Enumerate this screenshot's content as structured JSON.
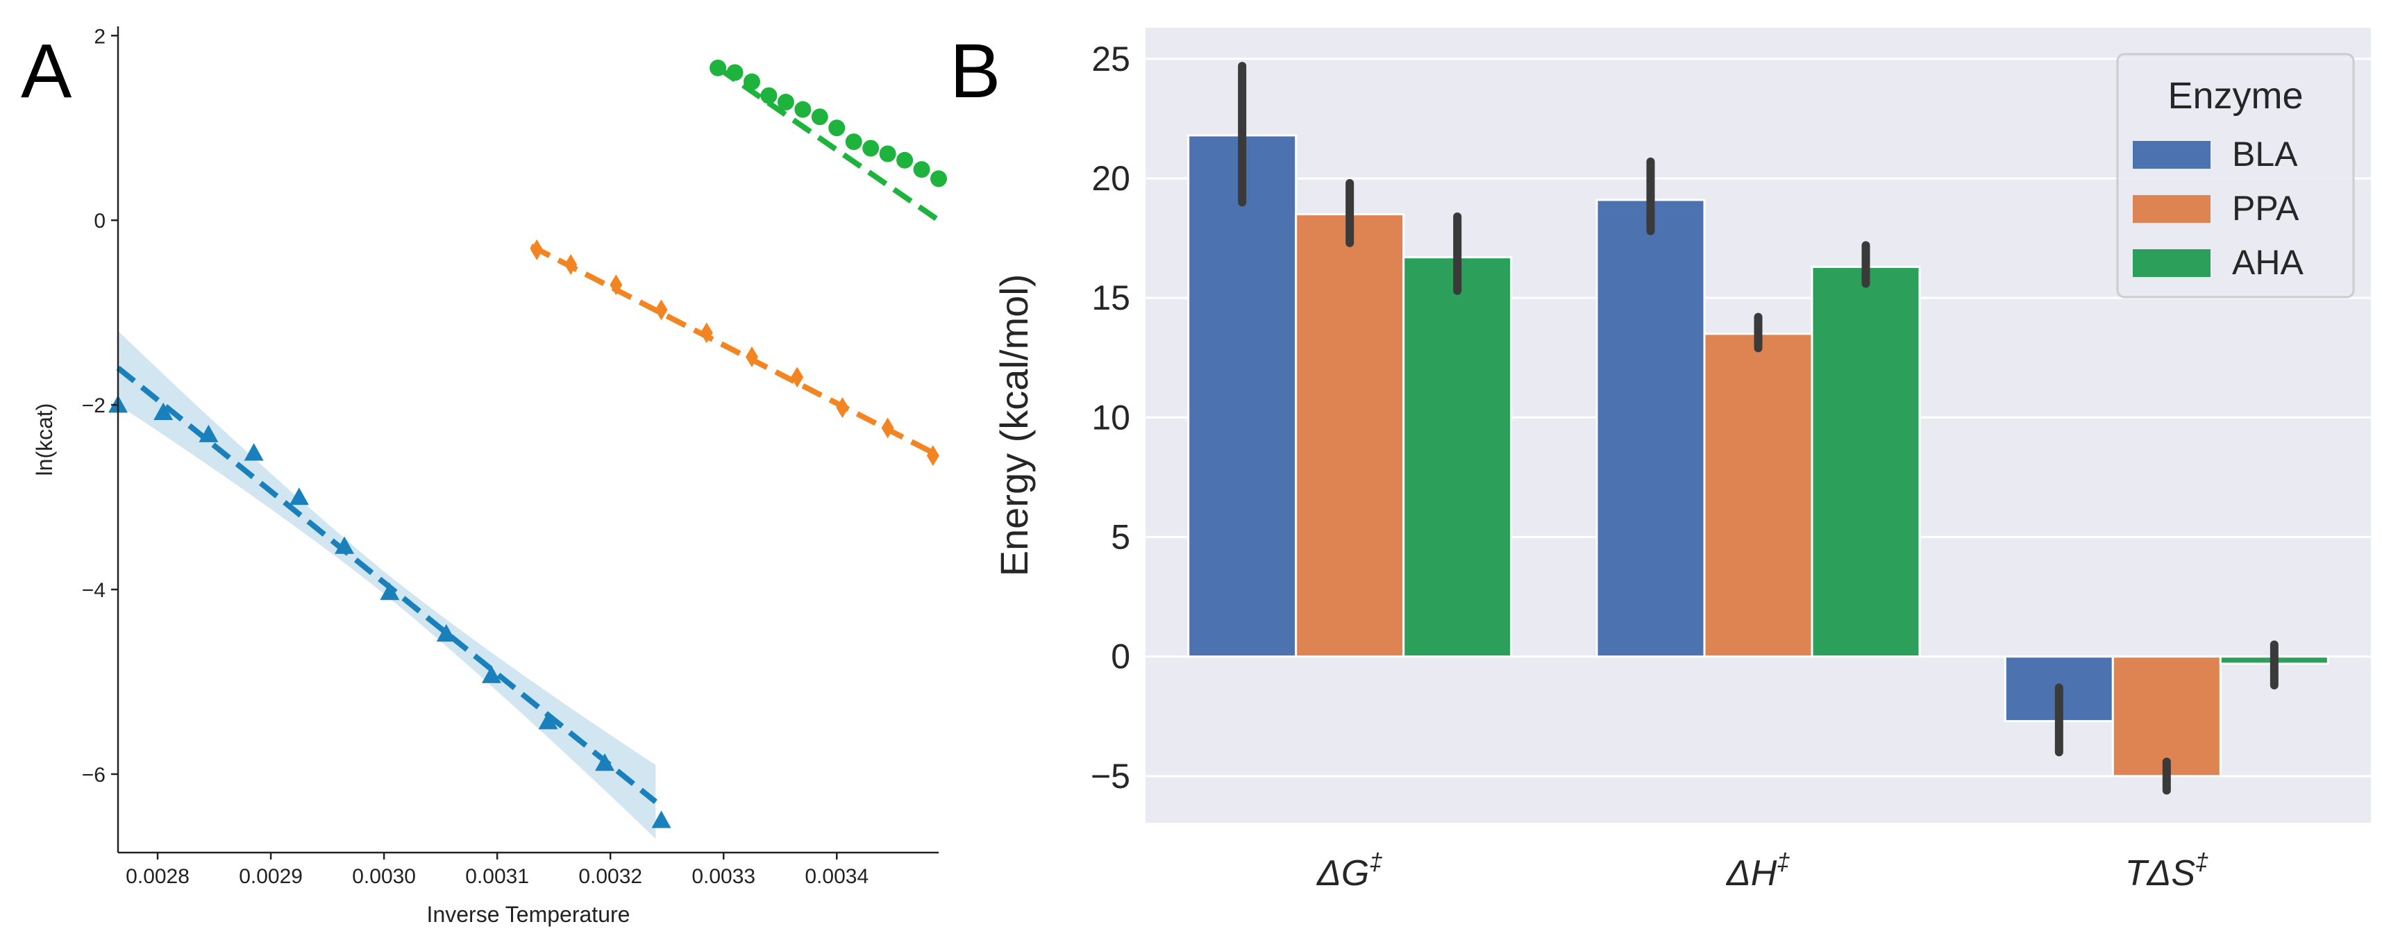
{
  "figure": {
    "panel_a_letter": "A",
    "panel_b_letter": "B"
  },
  "colors": {
    "blue_scatter": "#1a80bb",
    "orange_scatter": "#f28522",
    "green_scatter": "#1db33d",
    "BLA": "#4c72b0",
    "PPA": "#dd8452",
    "AHA": "#2ca05a",
    "panel_b_bg": "#eaeaf2",
    "error_bar": "#3a3a3a"
  },
  "chart_data": [
    {
      "type": "scatter",
      "panel": "A",
      "title": "",
      "xlabel": "Inverse Temperature",
      "ylabel": "ln(kcat)",
      "xlim": [
        0.002765,
        0.00349
      ],
      "ylim": [
        -6.85,
        2.1
      ],
      "xticks": [
        0.0028,
        0.0029,
        0.003,
        0.0031,
        0.0032,
        0.0033,
        0.0034
      ],
      "xtick_labels": [
        "0.0028",
        "0.0029",
        "0.0030",
        "0.0031",
        "0.0032",
        "0.0033",
        "0.0034"
      ],
      "yticks": [
        -6,
        -4,
        -2,
        0,
        2
      ],
      "ytick_labels": [
        "−6",
        "−4",
        "−2",
        "0",
        "2"
      ],
      "grid": false,
      "series": [
        {
          "name": "BLA",
          "marker": "triangle",
          "color": "#1a80bb",
          "x": [
            0.002765,
            0.002805,
            0.002845,
            0.002885,
            0.002925,
            0.002965,
            0.003005,
            0.003055,
            0.003095,
            0.003145,
            0.003195,
            0.003245
          ],
          "y": [
            -2.0,
            -2.08,
            -2.32,
            -2.52,
            -3.0,
            -3.53,
            -4.03,
            -4.48,
            -4.93,
            -5.43,
            -5.88,
            -6.5
          ],
          "fit": {
            "x": [
              0.002765,
              0.00324
            ],
            "y": [
              -1.6,
              -6.3
            ]
          },
          "confidence_band": true
        },
        {
          "name": "PPA",
          "marker": "diamond",
          "color": "#f28522",
          "x": [
            0.003135,
            0.003165,
            0.003205,
            0.003245,
            0.003285,
            0.003325,
            0.003365,
            0.003405,
            0.003445,
            0.003485
          ],
          "y": [
            -0.32,
            -0.48,
            -0.7,
            -0.97,
            -1.22,
            -1.48,
            -1.7,
            -2.03,
            -2.25,
            -2.55
          ],
          "fit": {
            "x": [
              0.00313,
              0.00349
            ],
            "y": [
              -0.28,
              -2.55
            ]
          },
          "confidence_band": false
        },
        {
          "name": "AHA",
          "marker": "circle",
          "color": "#1db33d",
          "x": [
            0.003295,
            0.00331,
            0.003325,
            0.00334,
            0.003355,
            0.00337,
            0.003385,
            0.0034,
            0.003415,
            0.00343,
            0.003445,
            0.00346,
            0.003475,
            0.00349
          ],
          "y": [
            1.65,
            1.6,
            1.5,
            1.35,
            1.28,
            1.2,
            1.12,
            1.0,
            0.85,
            0.78,
            0.72,
            0.65,
            0.55,
            0.45
          ],
          "fit": {
            "x": [
              0.003295,
              0.00349
            ],
            "y": [
              1.65,
              0.0
            ]
          },
          "confidence_band": false
        }
      ]
    },
    {
      "type": "bar",
      "panel": "B",
      "title": "",
      "xlabel": "",
      "ylabel": "Energy (kcal/mol)",
      "ylim": [
        -6.95,
        26.3
      ],
      "yticks": [
        -5,
        0,
        5,
        10,
        15,
        20,
        25
      ],
      "ytick_labels": [
        "−5",
        "0",
        "5",
        "10",
        "15",
        "20",
        "25"
      ],
      "grid": true,
      "categories": [
        {
          "base": "ΔG",
          "sup": "‡"
        },
        {
          "base": "ΔH",
          "sup": "‡"
        },
        {
          "base": "TΔS",
          "sup": "‡"
        }
      ],
      "legend": {
        "title": "Enzyme",
        "position": "top-right"
      },
      "series": [
        {
          "name": "BLA",
          "values": [
            21.8,
            19.1,
            -2.7
          ],
          "err_low": [
            19.0,
            17.8,
            -4.0
          ],
          "err_high": [
            24.7,
            20.7,
            -1.3
          ]
        },
        {
          "name": "PPA",
          "values": [
            18.5,
            13.5,
            -5.0
          ],
          "err_low": [
            17.3,
            12.9,
            -5.6
          ],
          "err_high": [
            19.8,
            14.2,
            -4.4
          ]
        },
        {
          "name": "AHA",
          "values": [
            16.7,
            16.3,
            -0.3
          ],
          "err_low": [
            15.3,
            15.6,
            -1.2
          ],
          "err_high": [
            18.4,
            17.2,
            0.5
          ]
        }
      ]
    }
  ]
}
